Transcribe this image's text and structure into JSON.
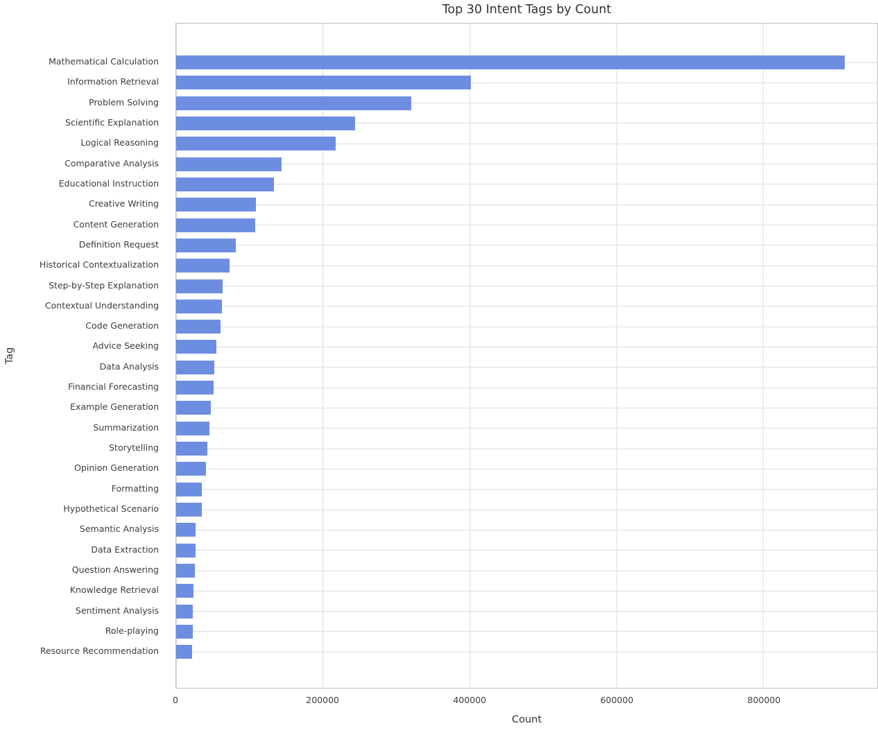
{
  "chart_data": {
    "type": "bar",
    "orientation": "horizontal",
    "title": "Top 30 Intent Tags by Count",
    "xlabel": "Count",
    "ylabel": "Tag",
    "xlim": [
      0,
      955000
    ],
    "x_ticks": [
      0,
      200000,
      400000,
      600000,
      800000
    ],
    "x_tick_labels": [
      "0",
      "200000",
      "400000",
      "600000",
      "800000"
    ],
    "grid": true,
    "legend": false,
    "bar_color": "#6d8ee0",
    "grid_color": "#dcdcdc",
    "spine_color": "#bdbdbd",
    "text_color": "#3c3c3c",
    "categories": [
      "Mathematical Calculation",
      "Information Retrieval",
      "Problem Solving",
      "Scientific Explanation",
      "Logical Reasoning",
      "Comparative Analysis",
      "Educational Instruction",
      "Creative Writing",
      "Content Generation",
      "Definition Request",
      "Historical Contextualization",
      "Step-by-Step Explanation",
      "Contextual Understanding",
      "Code Generation",
      "Advice Seeking",
      "Data Analysis",
      "Financial Forecasting",
      "Example Generation",
      "Summarization",
      "Storytelling",
      "Opinion Generation",
      "Formatting",
      "Hypothetical Scenario",
      "Semantic Analysis",
      "Data Extraction",
      "Question Answering",
      "Knowledge Retrieval",
      "Sentiment Analysis",
      "Role-playing",
      "Resource Recommendation"
    ],
    "values": [
      911000,
      401000,
      320000,
      244000,
      217000,
      143500,
      133500,
      109000,
      107300,
      81500,
      73000,
      63000,
      62000,
      60500,
      54900,
      52300,
      51100,
      47000,
      45000,
      42600,
      40700,
      35000,
      34800,
      26500,
      26200,
      25300,
      23800,
      22600,
      22300,
      21500
    ]
  }
}
